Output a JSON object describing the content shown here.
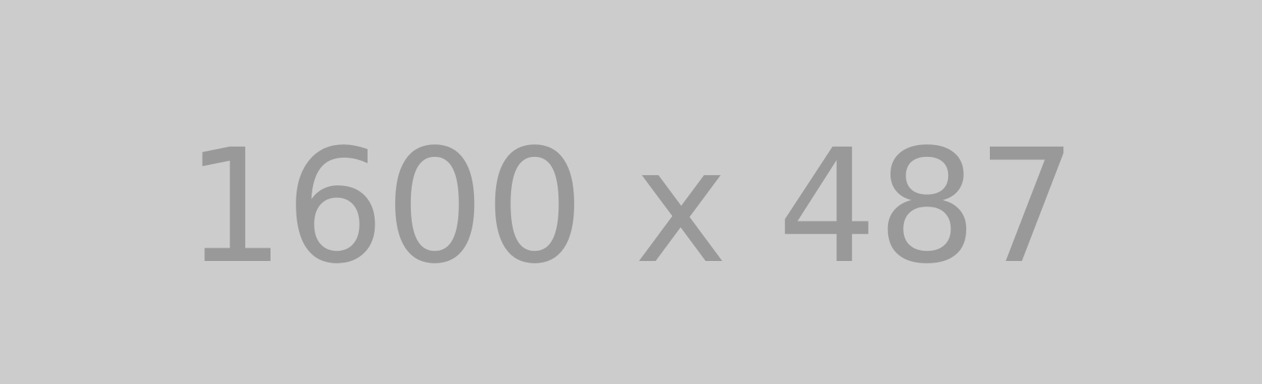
{
  "placeholder": {
    "label": "1600 x 487",
    "background_color": "#cccccc",
    "text_color": "#999999"
  }
}
